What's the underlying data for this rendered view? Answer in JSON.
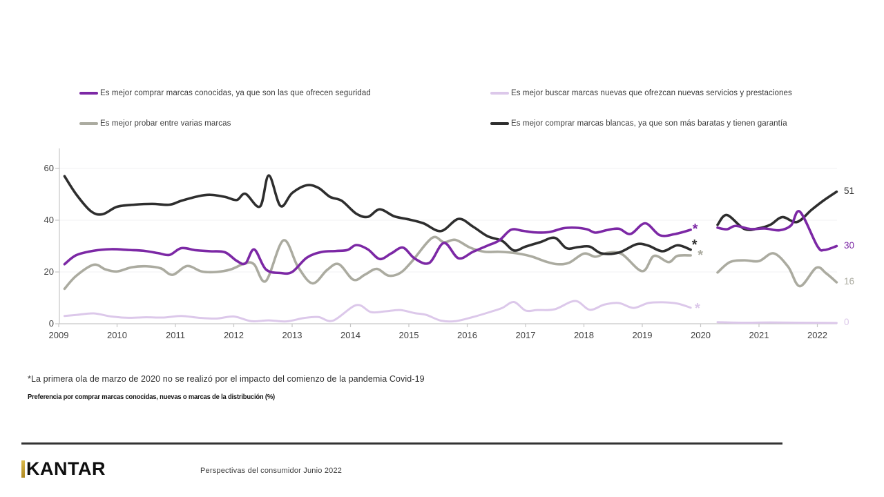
{
  "note": "*La primera ola de marzo de 2020 no se realizó por el impacto del comienzo de la pandemia Covid-19",
  "subtitle_bold": "Preferencia por comprar marcas conocidas, nuevas o marcas de la distribución  (%)",
  "footer": {
    "brand": "KANTAR",
    "caption": "Perspectivas del consumidor Junio 2022"
  },
  "legend": {
    "rows": [
      [
        {
          "series": "conocidas"
        },
        {
          "series": "nuevas"
        }
      ],
      [
        {
          "series": "probar"
        },
        {
          "series": "blancas"
        }
      ]
    ]
  },
  "chart_data": {
    "type": "line",
    "title": "Preferencia por comprar marcas conocidas, nuevas o marcas de la distribución (%)",
    "xlabel": "",
    "ylabel": "",
    "x_axis": {
      "ticks": [
        2009,
        2010,
        2011,
        2012,
        2013,
        2014,
        2015,
        2016,
        2017,
        2018,
        2019,
        2020,
        2021,
        2022
      ]
    },
    "y_axis": {
      "ticks": [
        0,
        20,
        40,
        60
      ],
      "gridlines": [
        20,
        40,
        60
      ],
      "range": [
        0,
        65
      ]
    },
    "gap_note": "no data wave at start of 2020 (Covid-19)",
    "series": [
      {
        "id": "nuevas",
        "name": "Es mejor buscar marcas nuevas que ofrezcan nuevas servicios y prestaciones",
        "color": "#DCC8EA",
        "stroke_width": 3,
        "end_label": "0",
        "segments": [
          [
            [
              2009.1,
              3.0
            ],
            [
              2009.3,
              3.4
            ],
            [
              2009.6,
              4.0
            ],
            [
              2009.9,
              2.8
            ],
            [
              2010.2,
              2.3
            ],
            [
              2010.5,
              2.5
            ],
            [
              2010.8,
              2.4
            ],
            [
              2011.1,
              3.0
            ],
            [
              2011.4,
              2.3
            ],
            [
              2011.7,
              2.0
            ],
            [
              2012.0,
              2.8
            ],
            [
              2012.3,
              1.0
            ],
            [
              2012.6,
              1.3
            ],
            [
              2012.9,
              0.9
            ],
            [
              2013.2,
              2.2
            ],
            [
              2013.45,
              2.6
            ],
            [
              2013.7,
              1.2
            ],
            [
              2014.1,
              7.2
            ],
            [
              2014.35,
              4.5
            ],
            [
              2014.6,
              4.8
            ],
            [
              2014.85,
              5.3
            ],
            [
              2015.1,
              4.1
            ],
            [
              2015.3,
              3.4
            ],
            [
              2015.55,
              1.2
            ],
            [
              2015.8,
              1.0
            ],
            [
              2016.1,
              2.6
            ],
            [
              2016.4,
              4.6
            ],
            [
              2016.6,
              6.1
            ],
            [
              2016.8,
              8.4
            ],
            [
              2017.0,
              5.1
            ],
            [
              2017.2,
              5.3
            ],
            [
              2017.5,
              5.6
            ],
            [
              2017.85,
              8.8
            ],
            [
              2018.1,
              5.4
            ],
            [
              2018.35,
              7.4
            ],
            [
              2018.6,
              8.0
            ],
            [
              2018.85,
              6.1
            ],
            [
              2019.1,
              8.0
            ],
            [
              2019.35,
              8.3
            ],
            [
              2019.6,
              7.8
            ],
            [
              2019.83,
              6.2
            ]
          ],
          [
            [
              2020.29,
              0.6
            ],
            [
              2020.7,
              0.4
            ],
            [
              2021.2,
              0.5
            ],
            [
              2021.7,
              0.4
            ],
            [
              2022.33,
              0.3
            ]
          ]
        ]
      },
      {
        "id": "probar",
        "name": "Es mejor probar entre varias marcas",
        "color": "#ABABA0",
        "stroke_width": 3.6,
        "end_label": "16",
        "segments": [
          [
            [
              2009.1,
              13.5
            ],
            [
              2009.3,
              18.5
            ],
            [
              2009.6,
              22.8
            ],
            [
              2009.8,
              21.0
            ],
            [
              2010.0,
              20.2
            ],
            [
              2010.25,
              21.8
            ],
            [
              2010.5,
              22.2
            ],
            [
              2010.75,
              21.4
            ],
            [
              2010.95,
              18.9
            ],
            [
              2011.2,
              22.3
            ],
            [
              2011.45,
              20.2
            ],
            [
              2011.7,
              20.0
            ],
            [
              2011.95,
              21.0
            ],
            [
              2012.2,
              23.4
            ],
            [
              2012.35,
              22.9
            ],
            [
              2012.55,
              16.5
            ],
            [
              2012.85,
              32.2
            ],
            [
              2013.1,
              22.0
            ],
            [
              2013.35,
              15.6
            ],
            [
              2013.6,
              20.8
            ],
            [
              2013.8,
              23.0
            ],
            [
              2014.05,
              17.0
            ],
            [
              2014.25,
              19.0
            ],
            [
              2014.45,
              21.2
            ],
            [
              2014.65,
              18.6
            ],
            [
              2014.85,
              19.6
            ],
            [
              2015.05,
              24.0
            ],
            [
              2015.4,
              33.2
            ],
            [
              2015.6,
              31.5
            ],
            [
              2015.8,
              32.4
            ],
            [
              2016.05,
              29.4
            ],
            [
              2016.3,
              27.8
            ],
            [
              2016.55,
              27.8
            ],
            [
              2016.85,
              27.2
            ],
            [
              2017.1,
              26.0
            ],
            [
              2017.35,
              24.0
            ],
            [
              2017.55,
              23.0
            ],
            [
              2017.75,
              23.6
            ],
            [
              2018.0,
              27.1
            ],
            [
              2018.2,
              25.9
            ],
            [
              2018.4,
              27.4
            ],
            [
              2018.65,
              26.9
            ],
            [
              2019.0,
              20.3
            ],
            [
              2019.2,
              26.2
            ],
            [
              2019.45,
              23.8
            ],
            [
              2019.6,
              26.2
            ],
            [
              2019.83,
              26.4
            ]
          ],
          [
            [
              2020.29,
              19.8
            ],
            [
              2020.5,
              23.8
            ],
            [
              2020.75,
              24.5
            ],
            [
              2021.0,
              24.2
            ],
            [
              2021.25,
              27.2
            ],
            [
              2021.5,
              22.0
            ],
            [
              2021.7,
              14.5
            ],
            [
              2021.98,
              21.6
            ],
            [
              2022.15,
              19.5
            ],
            [
              2022.33,
              16.0
            ]
          ]
        ]
      },
      {
        "id": "blancas",
        "name": "Es mejor comprar marcas blancas, ya que son más baratas y tienen garantía",
        "color": "#2E2E2E",
        "stroke_width": 3.6,
        "end_label": "51",
        "segments": [
          [
            [
              2009.1,
              57.0
            ],
            [
              2009.3,
              50.0
            ],
            [
              2009.55,
              43.5
            ],
            [
              2009.75,
              42.3
            ],
            [
              2010.0,
              45.2
            ],
            [
              2010.3,
              46.0
            ],
            [
              2010.6,
              46.3
            ],
            [
              2010.9,
              46.0
            ],
            [
              2011.1,
              47.5
            ],
            [
              2011.4,
              49.3
            ],
            [
              2011.6,
              49.8
            ],
            [
              2011.85,
              49.0
            ],
            [
              2012.05,
              47.8
            ],
            [
              2012.2,
              50.2
            ],
            [
              2012.45,
              45.3
            ],
            [
              2012.6,
              57.3
            ],
            [
              2012.8,
              45.5
            ],
            [
              2013.0,
              50.5
            ],
            [
              2013.25,
              53.5
            ],
            [
              2013.45,
              52.5
            ],
            [
              2013.65,
              49.0
            ],
            [
              2013.85,
              47.5
            ],
            [
              2014.1,
              42.5
            ],
            [
              2014.3,
              41.3
            ],
            [
              2014.5,
              44.2
            ],
            [
              2014.75,
              41.5
            ],
            [
              2015.0,
              40.3
            ],
            [
              2015.25,
              38.8
            ],
            [
              2015.55,
              35.8
            ],
            [
              2015.85,
              40.5
            ],
            [
              2016.1,
              37.5
            ],
            [
              2016.35,
              33.8
            ],
            [
              2016.6,
              32.0
            ],
            [
              2016.8,
              28.3
            ],
            [
              2017.0,
              29.8
            ],
            [
              2017.25,
              31.5
            ],
            [
              2017.5,
              33.2
            ],
            [
              2017.7,
              29.2
            ],
            [
              2017.9,
              29.6
            ],
            [
              2018.1,
              29.8
            ],
            [
              2018.3,
              27.2
            ],
            [
              2018.6,
              27.5
            ],
            [
              2018.9,
              30.7
            ],
            [
              2019.1,
              30.2
            ],
            [
              2019.35,
              28.0
            ],
            [
              2019.6,
              30.3
            ],
            [
              2019.83,
              28.6
            ]
          ],
          [
            [
              2020.29,
              38.2
            ],
            [
              2020.45,
              42.0
            ],
            [
              2020.75,
              36.6
            ],
            [
              2021.0,
              36.9
            ],
            [
              2021.2,
              38.3
            ],
            [
              2021.4,
              41.2
            ],
            [
              2021.65,
              39.3
            ],
            [
              2021.9,
              44.0
            ],
            [
              2022.1,
              47.5
            ],
            [
              2022.33,
              51.0
            ]
          ]
        ]
      },
      {
        "id": "conocidas",
        "name": "Es mejor comprar marcas conocidas, ya que son las que ofrecen seguridad",
        "color": "#7C28A5",
        "stroke_width": 3.6,
        "end_label": "30",
        "segments": [
          [
            [
              2009.1,
              23.0
            ],
            [
              2009.3,
              26.5
            ],
            [
              2009.6,
              28.2
            ],
            [
              2009.9,
              28.8
            ],
            [
              2010.2,
              28.5
            ],
            [
              2010.45,
              28.2
            ],
            [
              2010.7,
              27.3
            ],
            [
              2010.9,
              26.6
            ],
            [
              2011.1,
              29.2
            ],
            [
              2011.35,
              28.4
            ],
            [
              2011.6,
              28.0
            ],
            [
              2011.85,
              27.6
            ],
            [
              2012.05,
              24.3
            ],
            [
              2012.2,
              23.3
            ],
            [
              2012.35,
              28.7
            ],
            [
              2012.55,
              21.0
            ],
            [
              2012.8,
              19.6
            ],
            [
              2013.0,
              20.0
            ],
            [
              2013.25,
              25.5
            ],
            [
              2013.5,
              27.7
            ],
            [
              2013.75,
              28.1
            ],
            [
              2013.95,
              28.5
            ],
            [
              2014.1,
              30.4
            ],
            [
              2014.3,
              28.7
            ],
            [
              2014.5,
              25.0
            ],
            [
              2014.7,
              27.2
            ],
            [
              2014.9,
              29.4
            ],
            [
              2015.1,
              25.2
            ],
            [
              2015.35,
              23.5
            ],
            [
              2015.6,
              31.2
            ],
            [
              2015.85,
              25.3
            ],
            [
              2016.1,
              27.8
            ],
            [
              2016.35,
              30.2
            ],
            [
              2016.55,
              32.2
            ],
            [
              2016.75,
              36.3
            ],
            [
              2016.95,
              35.9
            ],
            [
              2017.15,
              35.3
            ],
            [
              2017.4,
              35.4
            ],
            [
              2017.65,
              36.9
            ],
            [
              2017.85,
              37.1
            ],
            [
              2018.05,
              36.5
            ],
            [
              2018.2,
              35.2
            ],
            [
              2018.4,
              36.2
            ],
            [
              2018.6,
              36.7
            ],
            [
              2018.8,
              34.7
            ],
            [
              2019.05,
              38.8
            ],
            [
              2019.3,
              34.2
            ],
            [
              2019.55,
              34.6
            ],
            [
              2019.83,
              36.3
            ]
          ],
          [
            [
              2020.29,
              37.1
            ],
            [
              2020.45,
              36.5
            ],
            [
              2020.6,
              37.8
            ],
            [
              2020.85,
              36.6
            ],
            [
              2021.1,
              36.8
            ],
            [
              2021.35,
              36.1
            ],
            [
              2021.55,
              38.0
            ],
            [
              2021.7,
              43.3
            ],
            [
              2022.0,
              30.0
            ],
            [
              2022.12,
              28.5
            ],
            [
              2022.33,
              30.0
            ]
          ]
        ]
      }
    ],
    "asterisks": [
      {
        "series": "conocidas",
        "x": 2019.93,
        "value": 36.6,
        "symbol": "*"
      },
      {
        "series": "blancas",
        "x": 2019.92,
        "value": 30.5,
        "symbol": "*"
      },
      {
        "series": "probar",
        "x": 2020.02,
        "value": 26.3,
        "symbol": "*"
      },
      {
        "series": "nuevas",
        "x": 2019.97,
        "value": 5.9,
        "symbol": "*"
      }
    ]
  }
}
